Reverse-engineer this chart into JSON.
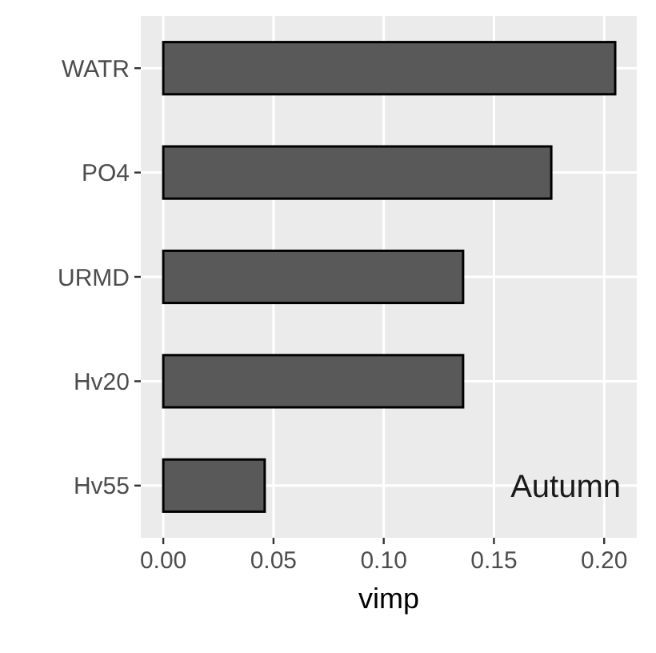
{
  "chart_data": {
    "type": "bar",
    "orientation": "horizontal",
    "categories": [
      "WATR",
      "PO4",
      "URMD",
      "Hv20",
      "Hv55"
    ],
    "values": [
      0.205,
      0.176,
      0.136,
      0.136,
      0.046
    ],
    "color": "#595959",
    "xlim": [
      -0.0102,
      0.2148
    ],
    "xticks": [
      {
        "value": 0,
        "label": "0.00"
      },
      {
        "value": 0.05,
        "label": "0.05"
      },
      {
        "value": 0.1,
        "label": "0.10"
      },
      {
        "value": 0.15,
        "label": "0.15"
      },
      {
        "value": 0.2,
        "label": "0.20"
      }
    ],
    "xlabel": "vimp",
    "annotations": [
      "Autumn"
    ],
    "grid": true
  }
}
